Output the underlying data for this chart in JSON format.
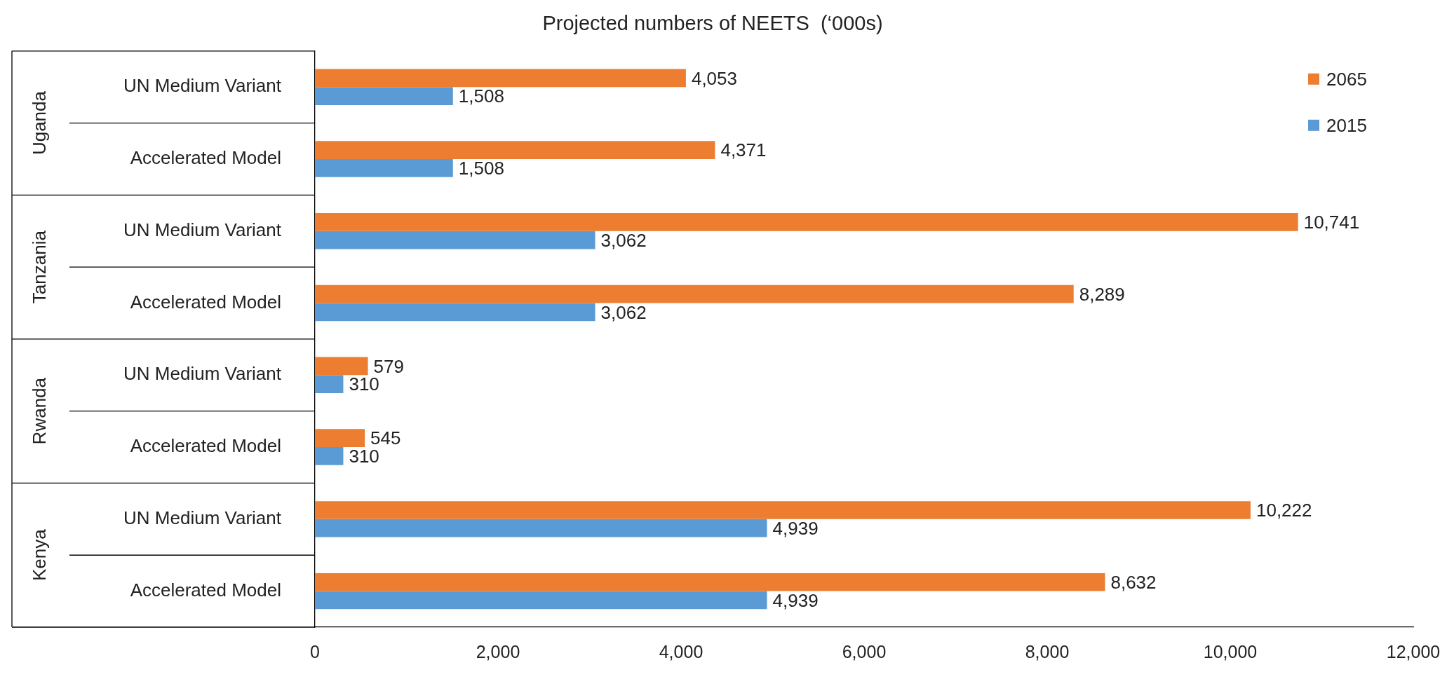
{
  "chart_data": {
    "type": "bar",
    "orientation": "horizontal",
    "title": "Projected numbers of NEETS  (‘000s)",
    "categories": [
      "UN Medium Variant",
      "Accelerated Model",
      "UN Medium Variant",
      "Accelerated Model",
      "UN Medium Variant",
      "Accelerated Model",
      "UN Medium Variant",
      "Accelerated Model"
    ],
    "annotations": [
      "Uganda",
      "Tanzania",
      "Rwanda",
      "Kenya"
    ],
    "series": [
      {
        "name": "2065",
        "color": "#ed7d31",
        "values": [
          4053,
          4371,
          10741,
          8289,
          579,
          545,
          10222,
          8632
        ],
        "value_labels": [
          "4,053",
          "4,371",
          "10,741",
          "8,289",
          "579",
          "545",
          "10,222",
          "8,632"
        ]
      },
      {
        "name": "2015",
        "color": "#5b9bd5",
        "values": [
          1508,
          1508,
          3062,
          3062,
          310,
          310,
          4939,
          4939
        ],
        "value_labels": [
          "1,508",
          "1,508",
          "3,062",
          "3,062",
          "310",
          "310",
          "4,939",
          "4,939"
        ]
      }
    ],
    "xlim": [
      0,
      12000
    ],
    "xticks": [
      0,
      {
        "value": 2000,
        "label": "2,000"
      },
      {
        "value": 4000,
        "label": "4,000"
      },
      {
        "value": 6000,
        "label": "6,000"
      },
      {
        "value": 8000,
        "label": "8,000"
      },
      {
        "value": 10000,
        "label": "10,000"
      },
      {
        "value": 12000,
        "label": "12,000"
      }
    ],
    "legend": "top right",
    "grid": false
  }
}
